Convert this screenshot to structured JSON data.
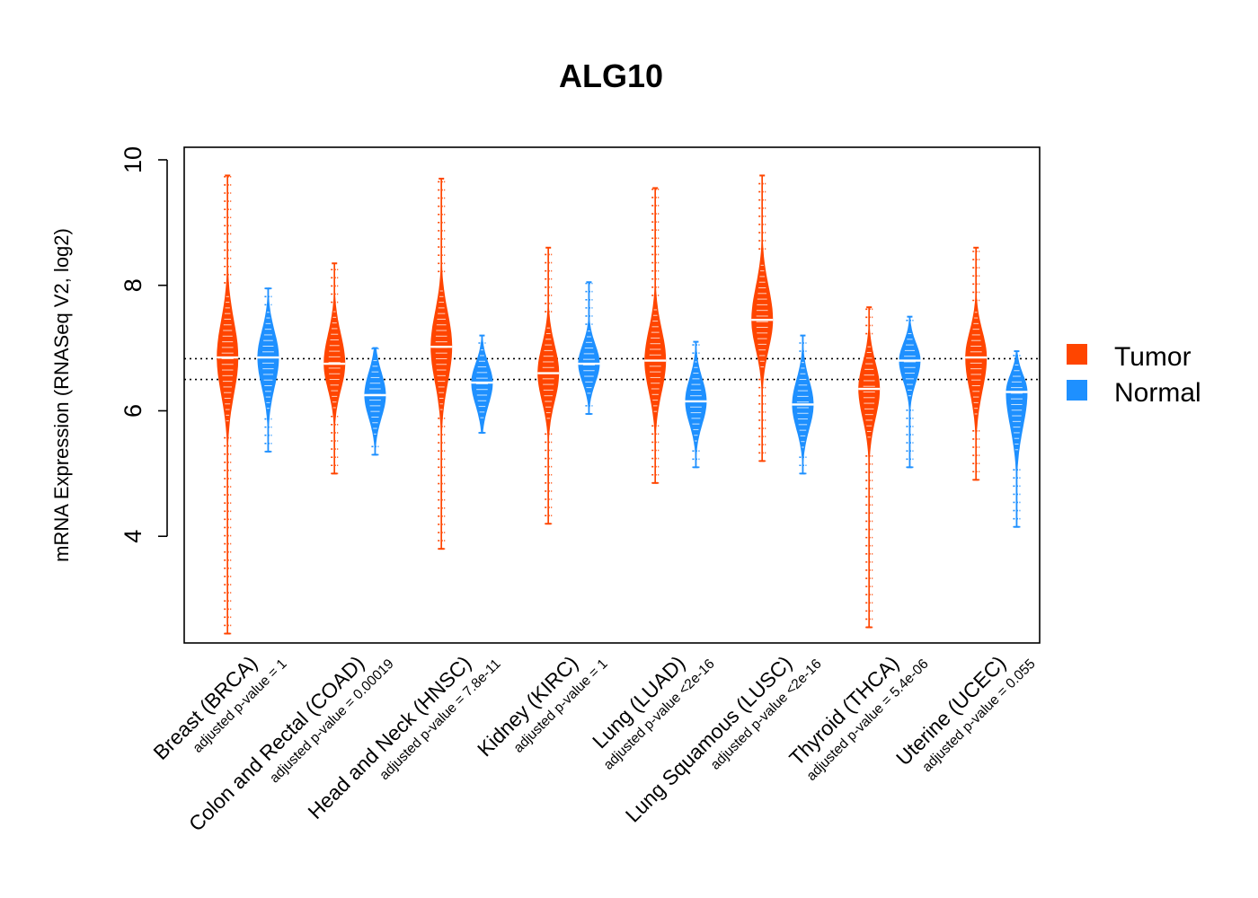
{
  "chart_data": {
    "type": "violin",
    "title": "ALG10",
    "xlabel": "",
    "ylabel": "mRNA Expression (RNASeq V2, log2)",
    "ylim": [
      2.3,
      10.2
    ],
    "yticks": [
      4,
      6,
      8,
      10
    ],
    "reference_lines": [
      6.5,
      6.83
    ],
    "colors": {
      "Tumor": "#FF4500",
      "Normal": "#1E90FF"
    },
    "legend": {
      "position": "right",
      "entries": [
        "Tumor",
        "Normal"
      ]
    },
    "categories": [
      "Breast (BRCA)",
      "Colon and Rectal (COAD)",
      "Head and Neck (HNSC)",
      "Kidney (KIRC)",
      "Lung (LUAD)",
      "Lung Squamous (LUSC)",
      "Thyroid (THCA)",
      "Uterine (UCEC)"
    ],
    "pvalues": [
      "adjusted p-value = 1",
      "adjusted p-value = 0.00019",
      "adjusted p-value = 7.8e-11",
      "adjusted p-value = 1",
      "adjusted p-value <2e-16",
      "adjusted p-value <2e-16",
      "adjusted p-value = 5.4e-06",
      "adjusted p-value = 0.055"
    ],
    "series": [
      {
        "name": "Tumor",
        "median": [
          6.85,
          6.75,
          7.02,
          6.6,
          6.8,
          7.45,
          6.35,
          6.85
        ],
        "min": [
          2.45,
          5.0,
          3.8,
          4.2,
          4.85,
          5.2,
          2.55,
          4.9
        ],
        "max": [
          9.75,
          8.35,
          9.7,
          8.6,
          9.55,
          9.75,
          7.65,
          8.6
        ],
        "core_low": [
          5.8,
          6.0,
          6.0,
          5.8,
          5.9,
          6.6,
          5.5,
          5.9
        ],
        "core_high": [
          7.9,
          7.6,
          8.0,
          7.4,
          7.7,
          8.4,
          7.1,
          7.6
        ]
      },
      {
        "name": "Normal",
        "median": [
          6.85,
          6.25,
          6.45,
          6.75,
          6.15,
          6.1,
          6.8,
          6.3
        ],
        "min": [
          5.35,
          5.3,
          5.65,
          5.95,
          5.1,
          5.0,
          5.1,
          4.15
        ],
        "max": [
          7.95,
          7.0,
          7.2,
          8.05,
          7.1,
          7.2,
          7.5,
          6.95
        ],
        "core_low": [
          6.0,
          5.6,
          5.8,
          6.2,
          5.5,
          5.4,
          6.2,
          5.3
        ],
        "core_high": [
          7.6,
          6.9,
          7.0,
          7.3,
          6.8,
          6.8,
          7.3,
          6.8
        ]
      }
    ]
  }
}
